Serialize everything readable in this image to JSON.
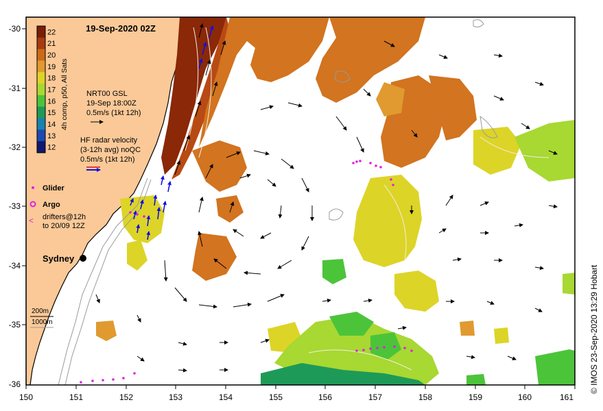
{
  "map": {
    "title": "19-Sep-2020 02Z",
    "colorbar": {
      "label": "4h comp, p50, All Sats",
      "ticks": [
        "22",
        "21",
        "20",
        "19",
        "18",
        "17",
        "16",
        "15",
        "14",
        "13",
        "12"
      ],
      "colors": [
        "#7a1e08",
        "#a83a10",
        "#cc6a18",
        "#e09a30",
        "#ddd428",
        "#a8d832",
        "#4cc43a",
        "#1e9a58",
        "#1a82b0",
        "#1c4ab0",
        "#101870"
      ]
    },
    "legend": {
      "gsl_line1": "NRT00 GSL",
      "gsl_line2": "19-Sep 18:00Z",
      "gsl_line3": "0.5m/s (1kt 12h)",
      "radar_line1": "HF radar velocity",
      "radar_line2": "(3-12h avg) noQC",
      "radar_line3": "0.5m/s (1kt 12h)",
      "glider": "Glider",
      "argo": "Argo",
      "drifters_line1": "drifters@12h",
      "drifters_line2": "to 20/09 12Z",
      "depth_200": "200m",
      "depth_1000": "1000m"
    },
    "city": "Sydney",
    "credit": "©  IMOS 23-Sep-2020 13:29 Hobart",
    "x_ticks": [
      "150",
      "151",
      "152",
      "153",
      "154",
      "155",
      "156",
      "157",
      "158",
      "159",
      "160",
      "161"
    ],
    "y_ticks": [
      "-30",
      "-31",
      "-32",
      "-33",
      "-34",
      "-35",
      "-36"
    ],
    "colors": {
      "land": "#fbc998",
      "coast": "#000000",
      "glider": "#e020e0",
      "radar": "#1010e0"
    }
  }
}
